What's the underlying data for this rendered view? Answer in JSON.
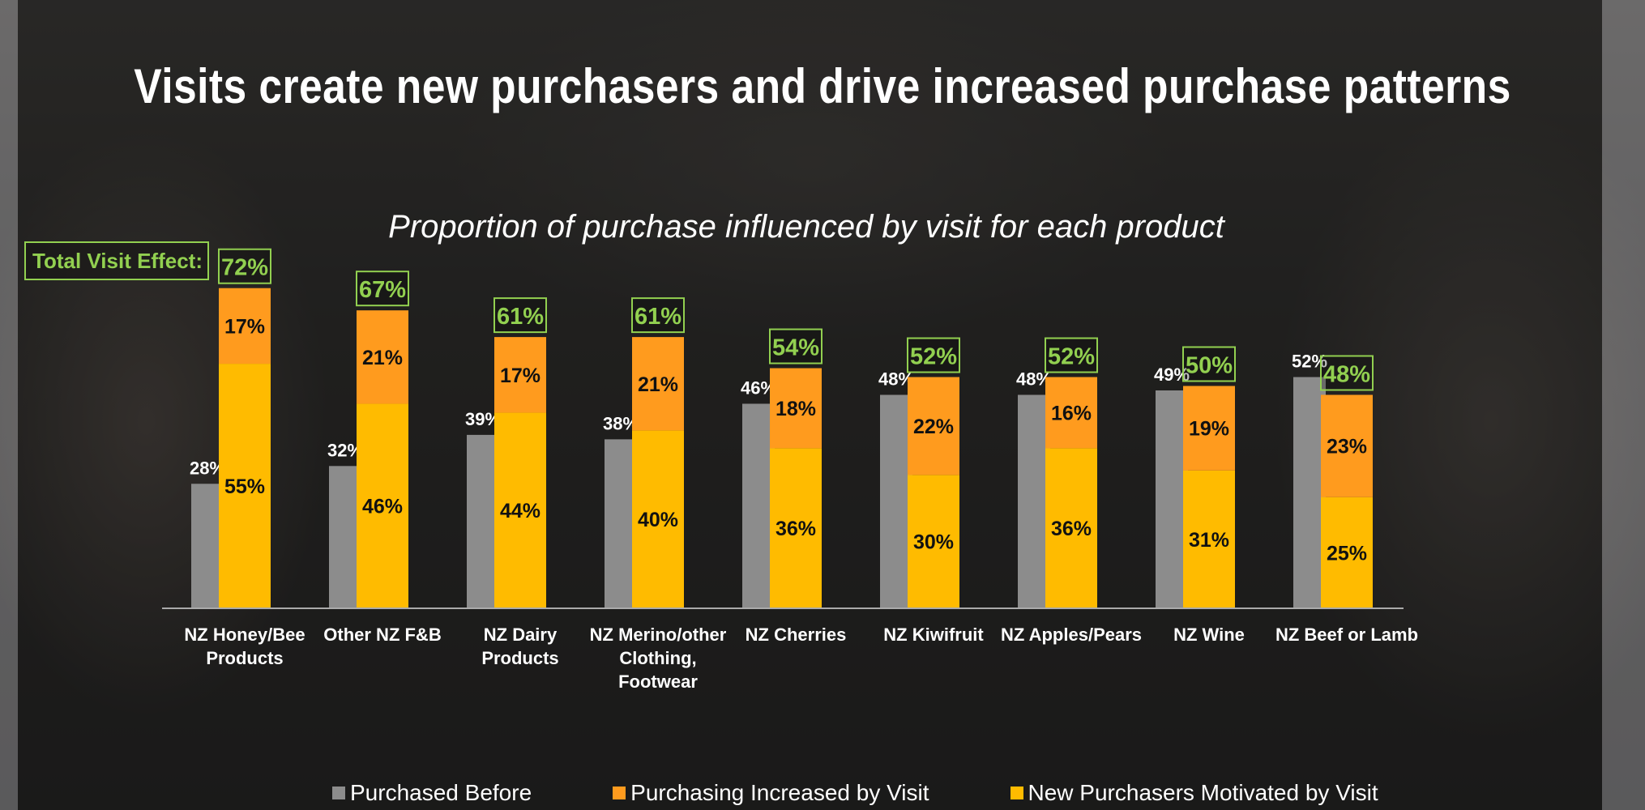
{
  "title": "Visits create new purchasers and drive increased purchase patterns",
  "subtitle": "Proportion of purchase influenced by visit for each product",
  "total_label": "Total Visit Effect:",
  "colors": {
    "purchased_before": "#8c8c8c",
    "increased": "#ff9b1e",
    "new": "#ffbb00",
    "total_box": "#92d050"
  },
  "legend": [
    {
      "label": "Purchased Before",
      "color": "#8c8c8c"
    },
    {
      "label": "Purchasing Increased by Visit",
      "color": "#ff9b1e"
    },
    {
      "label": "New Purchasers Motivated by Visit",
      "color": "#ffbb00"
    }
  ],
  "chart_data": {
    "type": "bar",
    "categories": [
      [
        "NZ Honey/Bee",
        "Products"
      ],
      [
        "Other NZ F&B"
      ],
      [
        "NZ Dairy",
        "Products"
      ],
      [
        "NZ Merino/other",
        "Clothing,",
        "Footwear"
      ],
      [
        "NZ Cherries"
      ],
      [
        "NZ Kiwifruit"
      ],
      [
        "NZ Apples/Pears"
      ],
      [
        "NZ Wine"
      ],
      [
        "NZ Beef or Lamb"
      ]
    ],
    "series": [
      {
        "name": "Purchased Before",
        "values": [
          28,
          32,
          39,
          38,
          46,
          48,
          48,
          49,
          52
        ]
      },
      {
        "name": "New Purchasers Motivated by Visit",
        "values": [
          55,
          46,
          44,
          40,
          36,
          30,
          36,
          31,
          25
        ]
      },
      {
        "name": "Purchasing Increased by Visit",
        "values": [
          17,
          21,
          17,
          21,
          18,
          22,
          16,
          19,
          23
        ]
      }
    ],
    "totals": [
      72,
      67,
      61,
      61,
      54,
      52,
      52,
      50,
      48
    ],
    "stacked_series": [
      "New Purchasers Motivated by Visit",
      "Purchasing Increased by Visit"
    ],
    "ylim": [
      0,
      100
    ],
    "grid": false,
    "legend_position": "bottom"
  }
}
